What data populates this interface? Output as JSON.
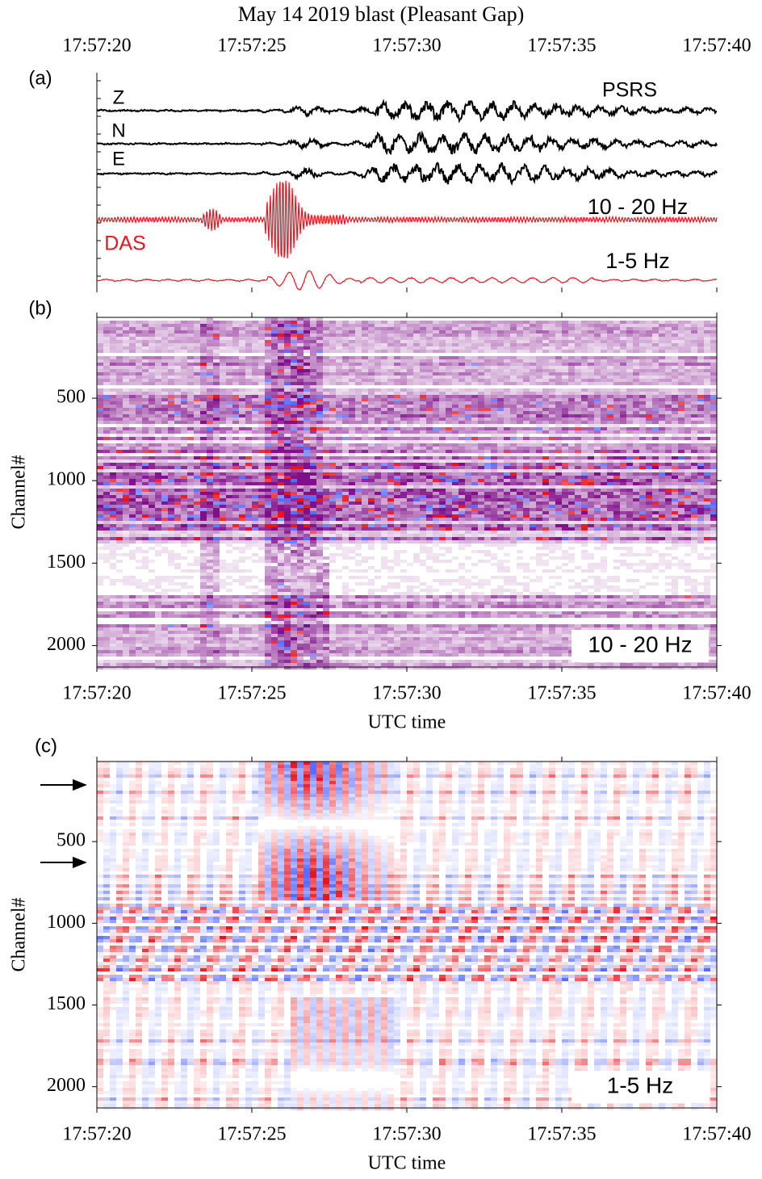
{
  "title": "May 14 2019 blast (Pleasant Gap)",
  "time_axis": {
    "xlim": [
      0,
      20
    ],
    "xticks": [
      {
        "value": 0,
        "label": "17:57:20"
      },
      {
        "value": 5,
        "label": "17:57:25"
      },
      {
        "value": 10,
        "label": "17:57:30"
      },
      {
        "value": 15,
        "label": "17:57:35"
      },
      {
        "value": 20,
        "label": "17:57:40"
      }
    ],
    "xlabel": "UTC time"
  },
  "panels": [
    {
      "label": "(a)",
      "station": "PSRS",
      "traces": [
        {
          "name": "Z",
          "color": "#000000"
        },
        {
          "name": "N",
          "color": "#000000"
        },
        {
          "name": "E",
          "color": "#000000"
        }
      ],
      "das": {
        "name": "DAS",
        "color": "#e8141e",
        "bands": [
          "10 - 20 Hz",
          "1-5 Hz"
        ]
      }
    },
    {
      "label": "(b)",
      "ylabel": "Channel#",
      "ylim": [
        10,
        2130
      ],
      "yticks": [
        500,
        1000,
        1500,
        2000
      ],
      "band": "10 - 20 Hz",
      "colormap": [
        "#80108a",
        "#e8141e",
        "#5a6cff"
      ]
    },
    {
      "label": "(c)",
      "ylabel": "Channel#",
      "ylim": [
        10,
        2130
      ],
      "yticks": [
        500,
        1000,
        1500,
        2000
      ],
      "band": "1-5 Hz",
      "colormap": [
        "#e8141e",
        "#5a6cff"
      ]
    }
  ]
}
